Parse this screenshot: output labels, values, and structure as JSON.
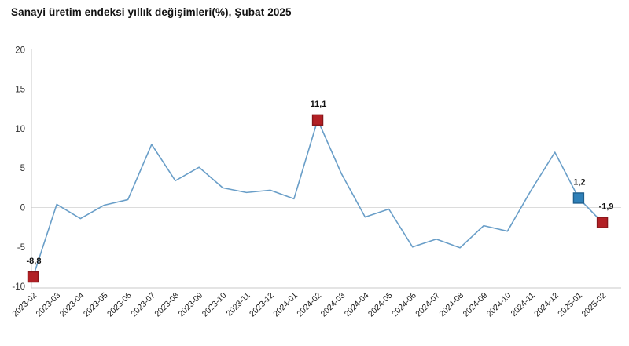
{
  "title": "Sanayi üretim endeksi yıllık değişimleri(%), Şubat 2025",
  "chart_data": {
    "type": "line",
    "title": "Sanayi üretim endeksi yıllık değişimleri(%), Şubat 2025",
    "categories": [
      "2023-02",
      "2023-03",
      "2023-04",
      "2023-05",
      "2023-06",
      "2023-07",
      "2023-08",
      "2023-09",
      "2023-10",
      "2023-11",
      "2023-12",
      "2024-01",
      "2024-02",
      "2024-03",
      "2024-04",
      "2024-05",
      "2024-06",
      "2024-07",
      "2024-08",
      "2024-09",
      "2024-10",
      "2024-11",
      "2024-12",
      "2025-01",
      "2025-02"
    ],
    "values": [
      -8.8,
      0.4,
      -1.4,
      0.3,
      1.0,
      8.0,
      3.4,
      5.1,
      2.5,
      1.9,
      2.2,
      1.1,
      11.1,
      4.3,
      -1.2,
      -0.2,
      -5.0,
      -4.0,
      -5.1,
      -2.3,
      -3.0,
      2.2,
      7.0,
      1.2,
      -1.9
    ],
    "yticks": [
      20,
      15,
      10,
      5,
      0,
      -5,
      -10
    ],
    "ylim": [
      -10,
      20
    ],
    "xlabel": "",
    "ylabel": "",
    "grid": "horizontal zero line only",
    "legend": "none",
    "decimal_separator": ",",
    "line_color": "#699ec8",
    "marker_colors": {
      "red": "#b22025",
      "red_border": "#87161a",
      "blue": "#2f80b8",
      "blue_border": "#1f5f8d"
    },
    "axis_color": "#c9c9c9",
    "gridline_color": "#dcdcdc",
    "markers": [
      {
        "index": 0,
        "color": "red"
      },
      {
        "index": 12,
        "color": "red"
      },
      {
        "index": 23,
        "color": "blue"
      },
      {
        "index": 24,
        "color": "red"
      }
    ],
    "value_labels": [
      {
        "index": 0,
        "text": "-8,8"
      },
      {
        "index": 12,
        "text": "11,1"
      },
      {
        "index": 23,
        "text": "1,2"
      },
      {
        "index": 24,
        "text": "-1,9"
      }
    ]
  }
}
